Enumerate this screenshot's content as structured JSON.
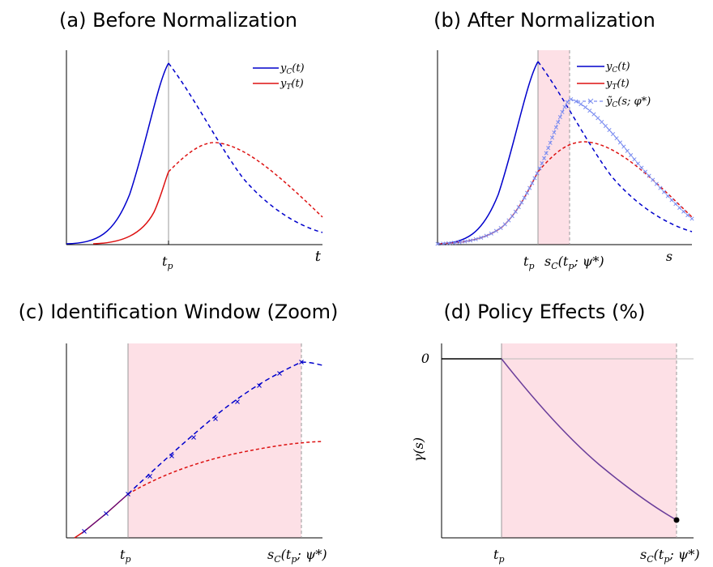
{
  "panels": {
    "a": {
      "title": "(a) Before Normalization",
      "xtick": "t",
      "xtick_sub": "p",
      "xlabel": "t",
      "legend": [
        "y",
        "y"
      ],
      "legend_sub": [
        "C",
        "T"
      ]
    },
    "b": {
      "title": "(b) After Normalization",
      "xtick1": "t",
      "xtick1_sub": "p",
      "xtick2": "s",
      "xtick2_sub": "C",
      "xtick2_arg": "(t",
      "xtick2_arg_sub": "p",
      "xtick2_tail": "; ψ*)",
      "xlabel": "s",
      "legend": [
        "y",
        "y",
        "ỹ"
      ],
      "legend_sub": [
        "C",
        "T",
        "C"
      ],
      "legend_tail": [
        "(t)",
        "(t)",
        "(s; φ*)"
      ]
    },
    "c": {
      "title": "(c) Identification Window (Zoom)",
      "xtick1": "t",
      "xtick1_sub": "p",
      "xtick2": "s",
      "xtick2_sub": "C",
      "xtick2_arg": "(t",
      "xtick2_arg_sub": "p",
      "xtick2_tail": "; ψ*)"
    },
    "d": {
      "title": "(d) Policy Effects (%)",
      "ytick": "0",
      "ylabel": "γ(s)",
      "xtick1": "t",
      "xtick1_sub": "p",
      "xtick2": "s",
      "xtick2_sub": "C",
      "xtick2_arg": "(t",
      "xtick2_arg_sub": "p",
      "xtick2_tail": "; ψ*)"
    }
  },
  "colors": {
    "control": "#0000cc",
    "treated": "#dd1111",
    "normalized": "#7a8cf0",
    "effect": "#6a3d9a",
    "window": "#fde0e6",
    "vline": "#999999"
  },
  "chart_data": [
    {
      "type": "line",
      "panel": "a",
      "title": "(a) Before Normalization",
      "xlabel": "t",
      "ylabel": "",
      "xlim": [
        0,
        10
      ],
      "ylim": [
        0,
        1
      ],
      "series": [
        {
          "name": "yC(t)",
          "x": [
            0,
            0.5,
            1.0,
            1.5,
            2.0,
            2.5,
            3.0,
            3.5,
            4.0
          ],
          "y": [
            0.0,
            0.01,
            0.04,
            0.12,
            0.28,
            0.5,
            0.72,
            0.9,
            1.0
          ],
          "style": "solid"
        },
        {
          "name": "yC(t)",
          "x": [
            4.0,
            5.0,
            6.0,
            7.0,
            8.0,
            9.0,
            10.0
          ],
          "y": [
            1.0,
            0.78,
            0.55,
            0.36,
            0.22,
            0.13,
            0.07
          ],
          "style": "dashed"
        },
        {
          "name": "yT(t)",
          "x": [
            1.0,
            1.5,
            2.0,
            2.5,
            3.0,
            3.5,
            4.0
          ],
          "y": [
            0.0,
            0.02,
            0.06,
            0.12,
            0.2,
            0.29,
            0.39
          ],
          "style": "solid"
        },
        {
          "name": "yT(t)",
          "x": [
            4.0,
            5.0,
            6.0,
            7.0,
            8.0,
            9.0,
            10.0
          ],
          "y": [
            0.39,
            0.51,
            0.55,
            0.5,
            0.4,
            0.29,
            0.2
          ],
          "style": "dashed"
        }
      ],
      "vline_x": 4.0
    },
    {
      "type": "line",
      "panel": "b",
      "title": "(b) After Normalization",
      "xlabel": "s",
      "ylabel": "",
      "xlim": [
        0,
        10
      ],
      "ylim": [
        0,
        1
      ],
      "window": [
        4.0,
        5.3
      ],
      "series": [
        {
          "name": "yC(t)",
          "x": [
            0,
            0.5,
            1.0,
            1.5,
            2.0,
            2.5,
            3.0,
            3.5,
            4.0
          ],
          "y": [
            0.0,
            0.01,
            0.04,
            0.12,
            0.28,
            0.5,
            0.72,
            0.9,
            1.0
          ],
          "style": "solid"
        },
        {
          "name": "yC(t)",
          "x": [
            4.0,
            5.0,
            6.0,
            7.0,
            8.0,
            9.0,
            10.0
          ],
          "y": [
            1.0,
            0.78,
            0.55,
            0.36,
            0.22,
            0.13,
            0.07
          ],
          "style": "dashed"
        },
        {
          "name": "yT(t)",
          "x": [
            0,
            1.0,
            2.0,
            3.0,
            3.5,
            4.0
          ],
          "y": [
            0.0,
            0.01,
            0.05,
            0.16,
            0.25,
            0.37
          ],
          "style": "solid"
        },
        {
          "name": "yT(t)",
          "x": [
            4.0,
            5.0,
            6.0,
            7.0,
            8.0,
            9.0,
            10.0
          ],
          "y": [
            0.37,
            0.53,
            0.55,
            0.48,
            0.37,
            0.27,
            0.19
          ],
          "style": "dashed"
        },
        {
          "name": "ỹC(s; φ*)",
          "x": [
            0,
            1.0,
            2.0,
            3.0,
            3.5,
            4.0,
            4.5,
            5.3,
            6.0,
            7.0,
            8.0,
            9.0,
            10.0
          ],
          "y": [
            0.0,
            0.01,
            0.05,
            0.16,
            0.25,
            0.37,
            0.6,
            0.81,
            0.74,
            0.59,
            0.44,
            0.33,
            0.24
          ],
          "style": "dashed-marker"
        }
      ]
    },
    {
      "type": "line",
      "panel": "c",
      "title": "(c) Identification Window (Zoom)",
      "xlabel": "",
      "ylabel": "",
      "xlim": [
        0,
        10
      ],
      "ylim": [
        0,
        1
      ],
      "window": [
        2.3,
        9.0
      ],
      "series": [
        {
          "name": "yT(t)",
          "x": [
            0.3,
            1.3,
            2.3
          ],
          "y": [
            0.02,
            0.14,
            0.26
          ],
          "style": "solid"
        },
        {
          "name": "yC(t)",
          "x": [
            2.3,
            3.2,
            4.1,
            5.0,
            5.9,
            6.8,
            7.7,
            8.6,
            9.0,
            9.9
          ],
          "y": [
            0.26,
            0.36,
            0.46,
            0.56,
            0.66,
            0.76,
            0.84,
            0.91,
            0.93,
            0.92
          ],
          "style": "dashed-marker"
        },
        {
          "name": "yT(t)",
          "x": [
            2.3,
            4.0,
            6.0,
            8.0,
            9.9
          ],
          "y": [
            0.26,
            0.36,
            0.45,
            0.52,
            0.56
          ],
          "style": "dashed"
        }
      ]
    },
    {
      "type": "line",
      "panel": "d",
      "title": "(d) Policy Effects (%)",
      "xlabel": "",
      "ylabel": "γ(s)",
      "xlim": [
        0,
        10
      ],
      "ylim": [
        -1,
        0.1
      ],
      "window": [
        2.6,
        9.6
      ],
      "series": [
        {
          "name": "γ(s)",
          "x": [
            0,
            2.6
          ],
          "y": [
            0,
            0
          ],
          "style": "solid-black"
        },
        {
          "name": "γ(s)",
          "x": [
            2.6,
            3.6,
            4.6,
            5.6,
            6.6,
            7.6,
            8.6,
            9.6
          ],
          "y": [
            0,
            -0.2,
            -0.38,
            -0.53,
            -0.66,
            -0.77,
            -0.86,
            -0.93
          ],
          "style": "solid-end-dot"
        }
      ]
    }
  ]
}
